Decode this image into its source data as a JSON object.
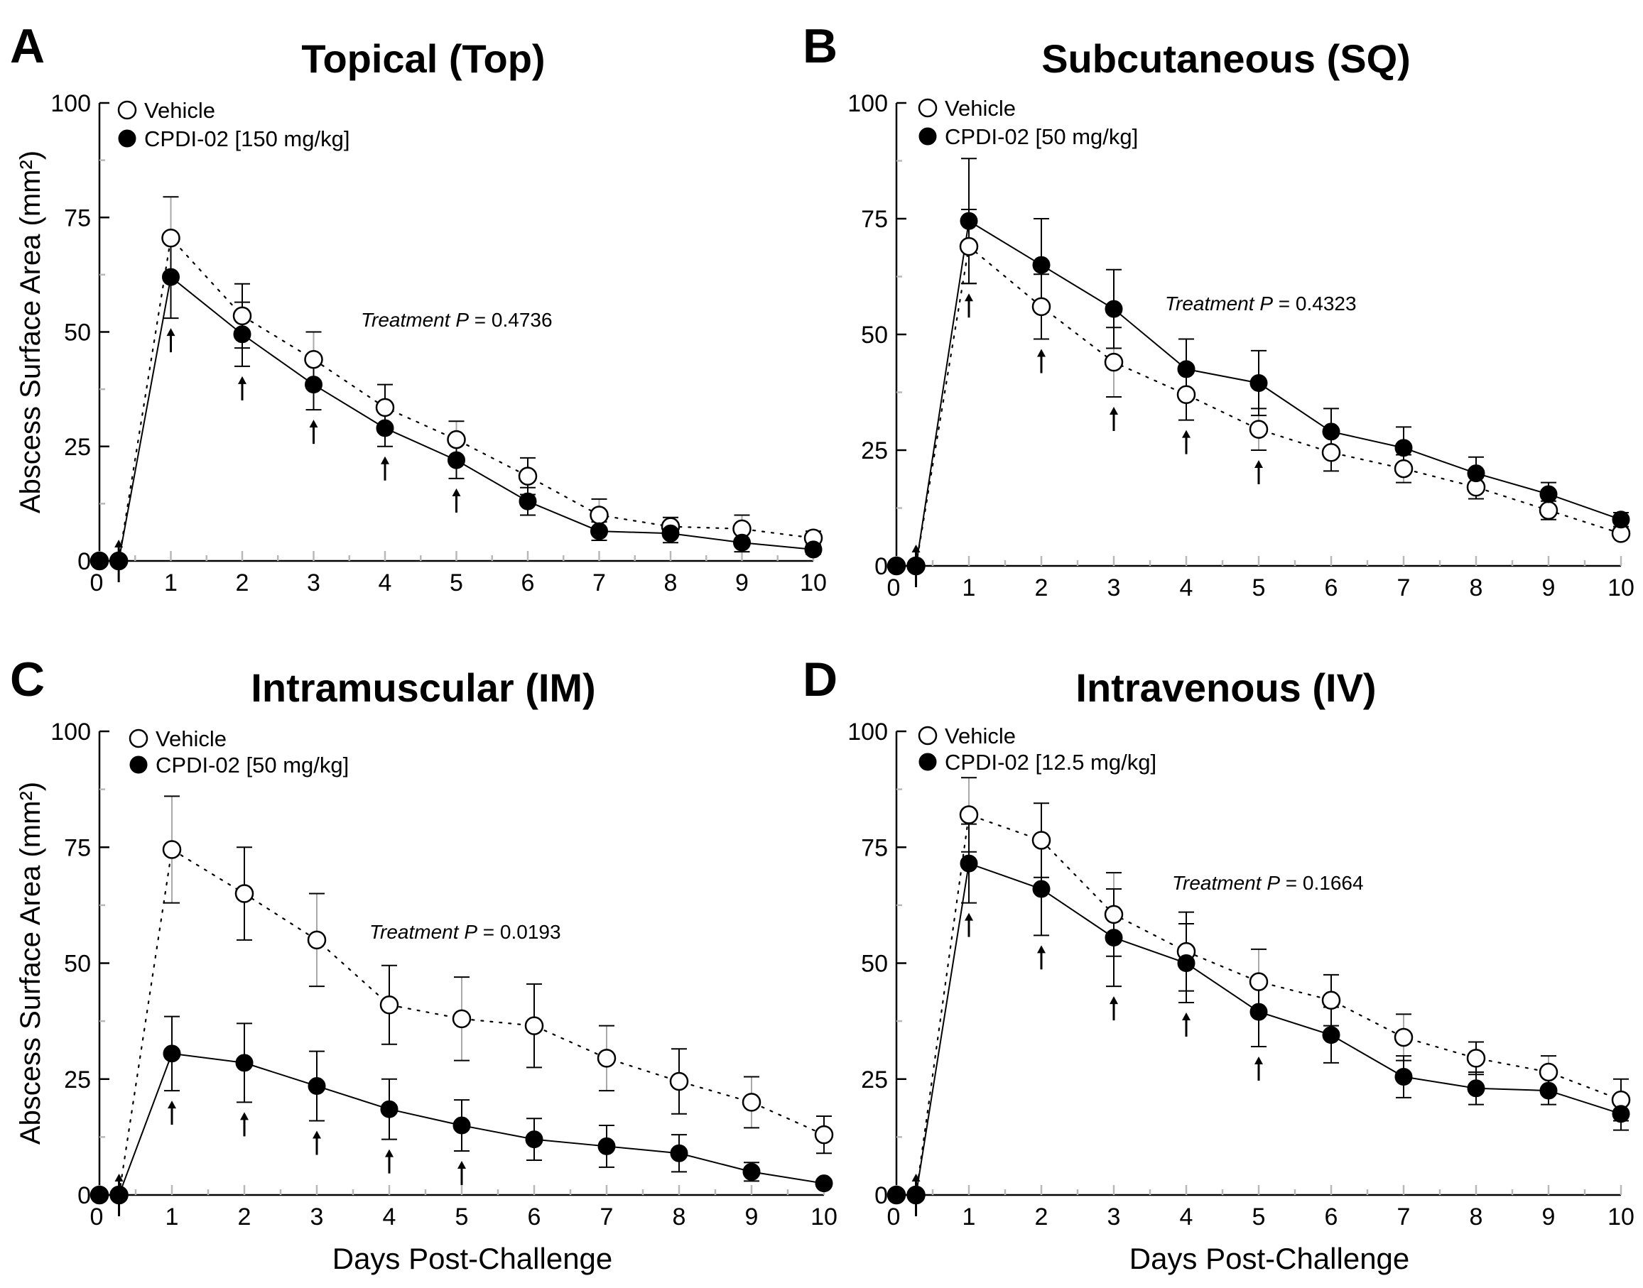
{
  "chart_data": [
    {
      "type": "line",
      "panel": "A",
      "title": "Topical (Top)",
      "xlabel": "",
      "ylabel": "Abscess Surface Area (mm²)",
      "ylim": [
        0,
        100
      ],
      "yticks": [
        0,
        25,
        50,
        75,
        100
      ],
      "xticks": [
        0,
        1,
        2,
        3,
        4,
        5,
        6,
        7,
        8,
        9,
        10
      ],
      "annotation": {
        "prefix": "Treatment ",
        "p": "P",
        "value": " = 0.4736"
      },
      "dose_arrows": [
        0.27,
        1,
        2,
        3,
        4,
        5
      ],
      "series": [
        {
          "name": "Vehicle",
          "marker": "open",
          "line": "dotted",
          "x": [
            0,
            0.27,
            1,
            2,
            3,
            4,
            5,
            6,
            7,
            8,
            9,
            10
          ],
          "y": [
            0,
            0,
            70.5,
            53.5,
            44,
            33.5,
            26.5,
            18.5,
            10,
            7.5,
            7,
            5
          ],
          "err": [
            0,
            0,
            9,
            7,
            6,
            5,
            4,
            4,
            3.5,
            2,
            3,
            1.5
          ]
        },
        {
          "name": "CPDI-02 [150 mg/kg]",
          "marker": "filled",
          "line": "solid",
          "x": [
            0,
            0.27,
            1,
            2,
            3,
            4,
            5,
            6,
            7,
            8,
            9,
            10
          ],
          "y": [
            0,
            0,
            62,
            49.5,
            38.5,
            29,
            22,
            13,
            6.5,
            6,
            4,
            2.5
          ],
          "err": [
            0,
            0,
            9,
            7,
            5.5,
            4,
            4,
            3,
            2,
            2,
            2,
            1
          ]
        }
      ]
    },
    {
      "type": "line",
      "panel": "B",
      "title": "Subcutaneous (SQ)",
      "xlabel": "",
      "ylabel": "",
      "ylim": [
        0,
        100
      ],
      "yticks": [
        0,
        25,
        50,
        75,
        100
      ],
      "xticks": [
        0,
        1,
        2,
        3,
        4,
        5,
        6,
        7,
        8,
        9,
        10
      ],
      "annotation": {
        "prefix": "Treatment ",
        "p": "P",
        "value": " = 0.4323"
      },
      "dose_arrows": [
        0.27,
        1,
        2,
        3,
        4,
        5
      ],
      "series": [
        {
          "name": "Vehicle",
          "marker": "open",
          "line": "dotted",
          "x": [
            0,
            0.27,
            1,
            2,
            3,
            4,
            5,
            6,
            7,
            8,
            9,
            10
          ],
          "y": [
            0,
            0,
            69,
            56,
            44,
            37,
            29.5,
            24.5,
            21,
            17,
            12,
            7
          ],
          "err": [
            0,
            0,
            8,
            7,
            7.5,
            5.5,
            4.5,
            4,
            3,
            2.5,
            2,
            1
          ]
        },
        {
          "name": "CPDI-02 [50 mg/kg]",
          "marker": "filled",
          "line": "solid",
          "x": [
            0,
            0.27,
            1,
            2,
            3,
            4,
            5,
            6,
            7,
            8,
            9,
            10
          ],
          "y": [
            0,
            0,
            74.5,
            65,
            55.5,
            42.5,
            39.5,
            29,
            25.5,
            20,
            15.5,
            10
          ],
          "err": [
            0,
            0,
            13.5,
            10,
            8.5,
            6.5,
            7,
            5,
            4.5,
            3.5,
            2.5,
            1.5
          ]
        }
      ]
    },
    {
      "type": "line",
      "panel": "C",
      "title": "Intramuscular (IM)",
      "xlabel": "Days Post-Challenge",
      "ylabel": "Abscess Surface Area (mm²)",
      "ylim": [
        0,
        100
      ],
      "yticks": [
        0,
        25,
        50,
        75,
        100
      ],
      "xticks": [
        0,
        1,
        2,
        3,
        4,
        5,
        6,
        7,
        8,
        9,
        10
      ],
      "annotation": {
        "prefix": "Treatment ",
        "p": "P",
        "value": " = 0.0193"
      },
      "dose_arrows": [
        0.27,
        1,
        2,
        3,
        4,
        5
      ],
      "series": [
        {
          "name": "Vehicle",
          "marker": "open",
          "line": "dotted",
          "x": [
            0,
            0.27,
            1,
            2,
            3,
            4,
            5,
            6,
            7,
            8,
            9,
            10
          ],
          "y": [
            0,
            0,
            74.5,
            65,
            55,
            41,
            38,
            36.5,
            29.5,
            24.5,
            20,
            13
          ],
          "err": [
            0,
            0,
            11.5,
            10,
            10,
            8.5,
            9,
            9,
            7,
            7,
            5.5,
            4
          ]
        },
        {
          "name": "CPDI-02 [50 mg/kg]",
          "marker": "filled",
          "line": "solid",
          "x": [
            0,
            0.27,
            1,
            2,
            3,
            4,
            5,
            6,
            7,
            8,
            9,
            10
          ],
          "y": [
            0,
            0,
            30.5,
            28.5,
            23.5,
            18.5,
            15,
            12,
            10.5,
            9,
            5,
            2.5
          ],
          "err": [
            0,
            0,
            8,
            8.5,
            7.5,
            6.5,
            5.5,
            4.5,
            4.5,
            4,
            2,
            0.5
          ]
        }
      ]
    },
    {
      "type": "line",
      "panel": "D",
      "title": "Intravenous (IV)",
      "xlabel": "Days Post-Challenge",
      "ylabel": "",
      "ylim": [
        0,
        100
      ],
      "yticks": [
        0,
        25,
        50,
        75,
        100
      ],
      "xticks": [
        0,
        1,
        2,
        3,
        4,
        5,
        6,
        7,
        8,
        9,
        10
      ],
      "annotation": {
        "prefix": "Treatment ",
        "p": "P",
        "value": " = 0.1664"
      },
      "dose_arrows": [
        0.27,
        1,
        2,
        3,
        4,
        5
      ],
      "series": [
        {
          "name": "Vehicle",
          "marker": "open",
          "line": "dotted",
          "x": [
            0,
            0.27,
            1,
            2,
            3,
            4,
            5,
            6,
            7,
            8,
            9,
            10
          ],
          "y": [
            0,
            0,
            82,
            76.5,
            60.5,
            52.5,
            46,
            42,
            34,
            29.5,
            26.5,
            20.5
          ],
          "err": [
            0,
            0,
            8,
            8,
            9,
            8.5,
            7,
            5.5,
            5,
            3.5,
            3.5,
            4.5
          ]
        },
        {
          "name": "CPDI-02 [12.5 mg/kg]",
          "marker": "filled",
          "line": "solid",
          "x": [
            0,
            0.27,
            1,
            2,
            3,
            4,
            5,
            6,
            7,
            8,
            9,
            10
          ],
          "y": [
            0,
            0,
            71.5,
            66,
            55.5,
            50,
            39.5,
            34.5,
            25.5,
            23,
            22.5,
            17.5
          ],
          "err": [
            0,
            0,
            8.5,
            10,
            10.5,
            8.5,
            7.5,
            6,
            4.5,
            3.5,
            3,
            3.5
          ]
        }
      ]
    }
  ]
}
